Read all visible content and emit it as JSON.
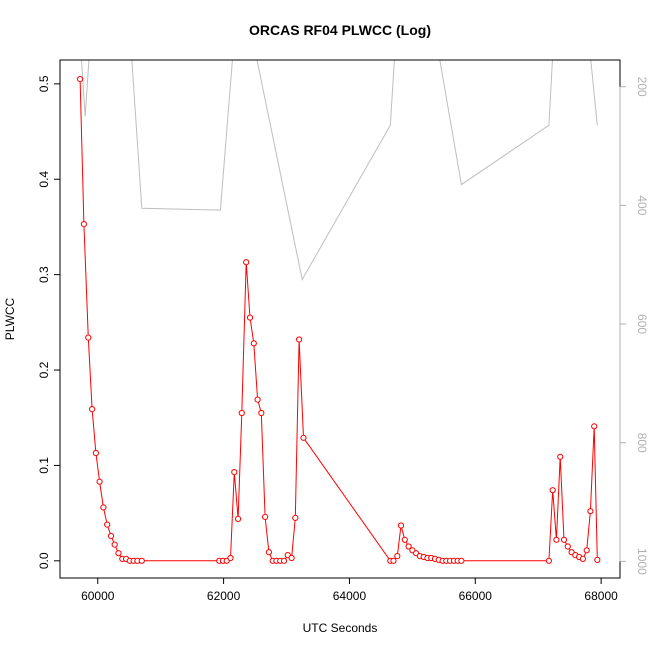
{
  "colors": {
    "primary_series": "#ff0000",
    "secondary_series": "#bebebe",
    "right_axis": "#b0b0b0",
    "frame": "#000000"
  },
  "chart_data": {
    "type": "line",
    "title": "ORCAS RF04 PLWCC (Log)",
    "xlabel": "UTC Seconds",
    "ylabel": "PLWCC",
    "xlim": [
      59400,
      68300
    ],
    "ylim": [
      -0.018,
      0.525
    ],
    "y2lim": [
      1028,
      155
    ],
    "y2_reversed": true,
    "x_ticks": [
      60000,
      62000,
      64000,
      66000,
      68000
    ],
    "x_tick_labels": [
      "60000",
      "62000",
      "64000",
      "66000",
      "68000"
    ],
    "y_ticks": [
      0.0,
      0.1,
      0.2,
      0.3,
      0.4,
      0.5
    ],
    "y_tick_labels": [
      "0.0",
      "0.1",
      "0.2",
      "0.3",
      "0.4",
      "0.5"
    ],
    "y2_ticks": [
      200,
      400,
      600,
      800,
      1000
    ],
    "y2_tick_labels": [
      "200",
      "400",
      "600",
      "800",
      "1000"
    ],
    "grid": false,
    "series": [
      {
        "axis": "left",
        "marker": "circle",
        "color": "#ff0000",
        "x": [
          59720,
          59780,
          59850,
          59910,
          59970,
          60030,
          60090,
          60150,
          60210,
          60270,
          60330,
          60390,
          60450,
          60510,
          60570,
          60630,
          60700,
          61930,
          61990,
          62050,
          62110,
          62170,
          62230,
          62290,
          62360,
          62420,
          62480,
          62540,
          62600,
          62660,
          62720,
          62780,
          62840,
          62900,
          62960,
          63020,
          63080,
          63140,
          63200,
          63270,
          64650,
          64700,
          64760,
          64820,
          64880,
          64940,
          65000,
          65060,
          65120,
          65180,
          65240,
          65300,
          65360,
          65420,
          65480,
          65540,
          65600,
          65660,
          65720,
          65780,
          67170,
          67230,
          67290,
          67350,
          67410,
          67470,
          67530,
          67590,
          67650,
          67710,
          67770,
          67830,
          67890,
          67940
        ],
        "y": [
          0.505,
          0.353,
          0.234,
          0.159,
          0.113,
          0.083,
          0.056,
          0.038,
          0.026,
          0.017,
          0.008,
          0.002,
          0.002,
          0.0,
          0.0,
          0.0,
          0.0,
          0.0,
          0.0,
          0.0,
          0.003,
          0.093,
          0.044,
          0.155,
          0.313,
          0.255,
          0.228,
          0.169,
          0.155,
          0.046,
          0.009,
          0.0,
          0.0,
          0.0,
          0.0,
          0.006,
          0.003,
          0.045,
          0.232,
          0.129,
          0.0,
          0.0,
          0.005,
          0.037,
          0.022,
          0.015,
          0.011,
          0.008,
          0.005,
          0.004,
          0.003,
          0.003,
          0.002,
          0.001,
          0.0,
          0.0,
          0.0,
          0.0,
          0.0,
          0.0,
          0.0,
          0.074,
          0.022,
          0.109,
          0.022,
          0.015,
          0.009,
          0.006,
          0.004,
          0.002,
          0.011,
          0.052,
          0.141,
          0.001
        ]
      },
      {
        "axis": "right",
        "marker": "none",
        "color": "#bebebe",
        "x": [
          59720,
          59800,
          59950,
          60450,
          60700,
          61950,
          62250,
          63250,
          64650,
          64800,
          65200,
          65780,
          67170,
          67300,
          67700,
          67940
        ],
        "y": [
          120,
          250,
          10,
          10,
          405,
          408,
          10,
          525,
          265,
          10,
          10,
          365,
          265,
          10,
          10,
          265
        ]
      }
    ]
  }
}
